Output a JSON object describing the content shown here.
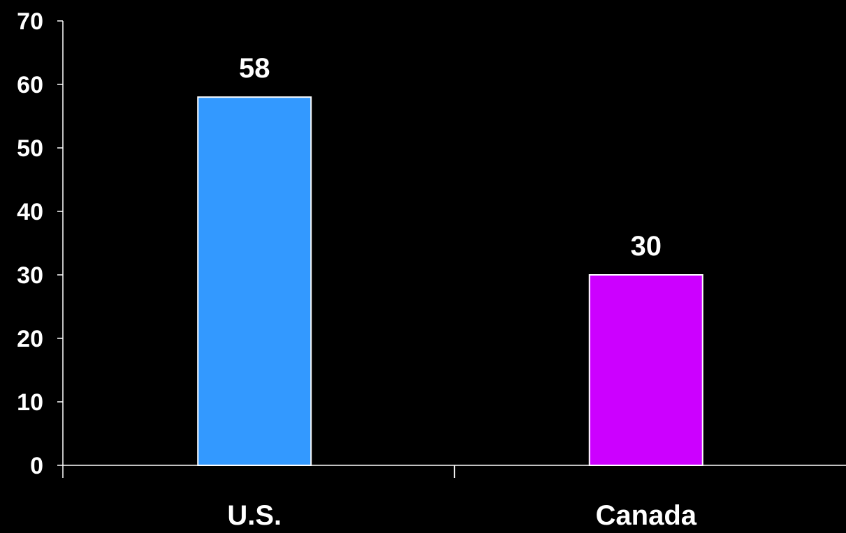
{
  "chart_data": {
    "type": "bar",
    "categories": [
      "U.S.",
      "Canada"
    ],
    "values": [
      58,
      30
    ],
    "data_labels": [
      "58",
      "30"
    ],
    "bar_colors": [
      "#3399ff",
      "#cc00ff"
    ],
    "bar_outline_color": "#ffffff",
    "background_color": "#000000",
    "axis_color": "#ffffff",
    "text_color": "#ffffff",
    "ylim": [
      0,
      70
    ],
    "yticks": [
      0,
      10,
      20,
      30,
      40,
      50,
      60,
      70
    ],
    "ytick_labels": [
      "0",
      "10",
      "20",
      "30",
      "40",
      "50",
      "60",
      "70"
    ],
    "title": "",
    "xlabel": "",
    "ylabel": "",
    "grid": false,
    "legend": false
  }
}
